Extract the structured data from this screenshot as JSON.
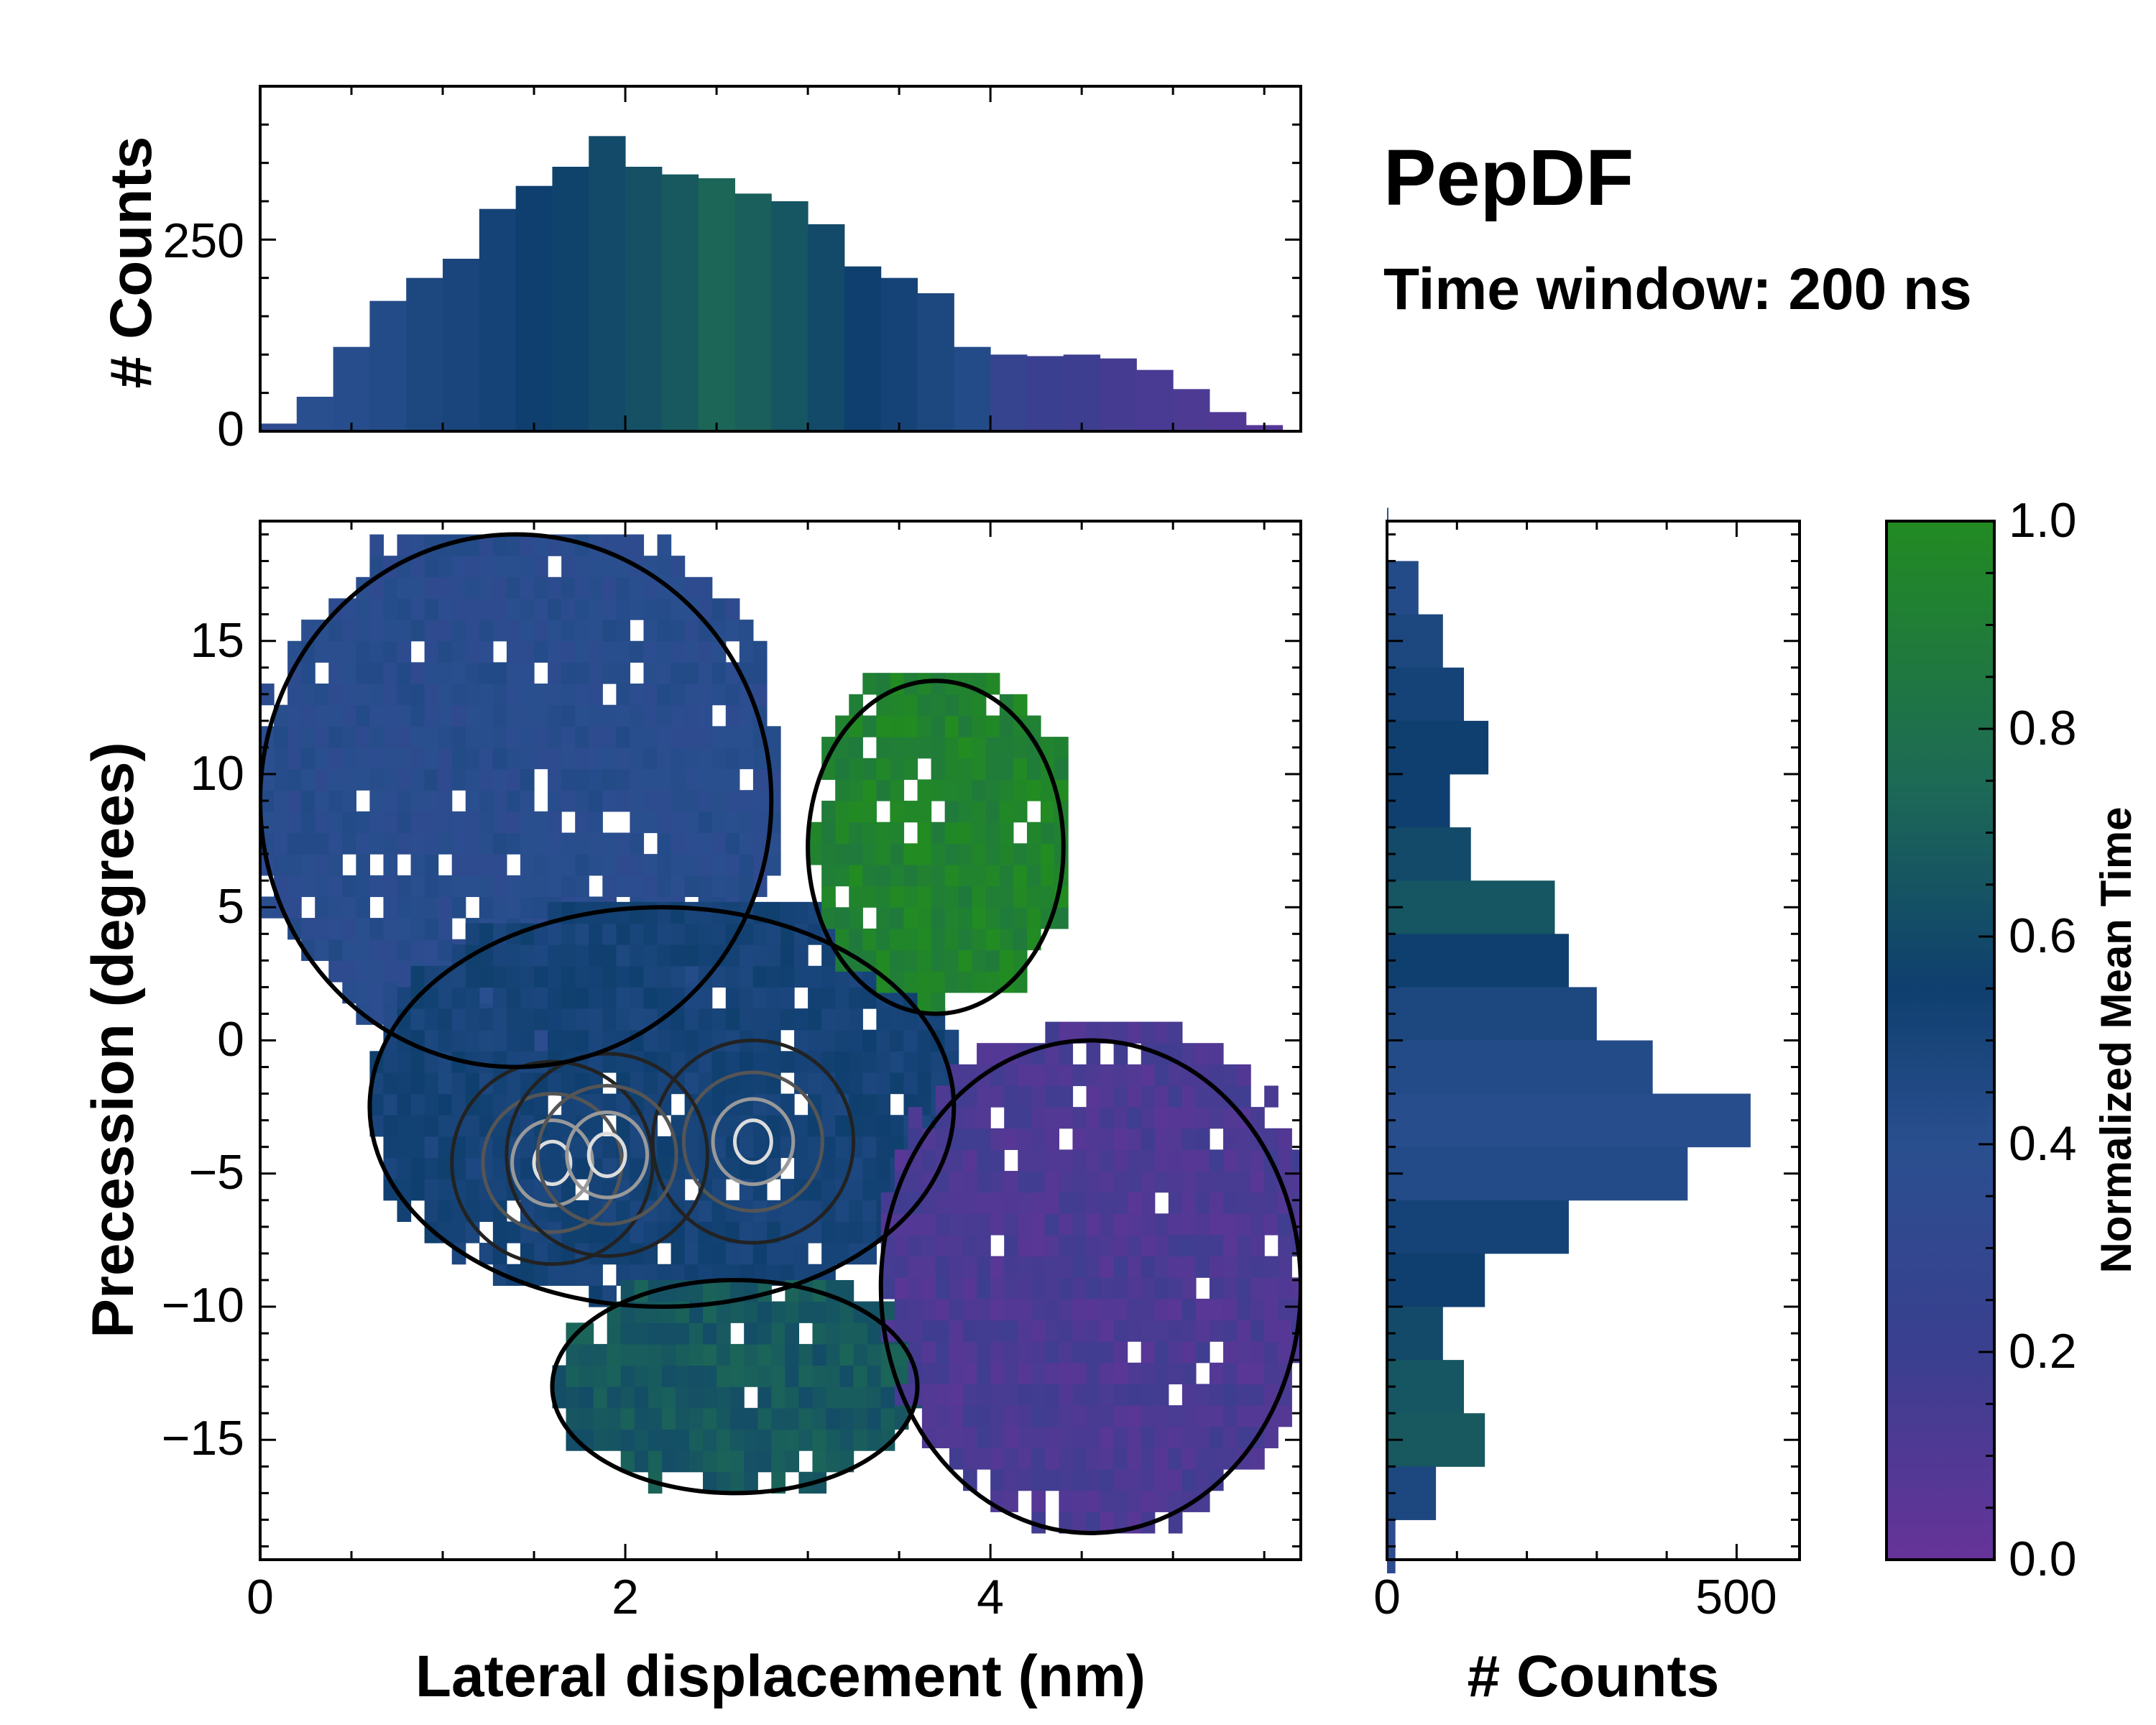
{
  "chart_data": [
    {
      "type": "bar",
      "panel": "top-marginal-histogram",
      "ylabel": "# Counts",
      "ylim": [
        0,
        450
      ],
      "yticks": [
        0,
        250
      ],
      "xlim": [
        0,
        5.7
      ],
      "description_series": "counts of lateral displacement (nm), colored by normalized mean time",
      "x_centers": [
        0.1,
        0.3,
        0.5,
        0.7,
        0.9,
        1.1,
        1.3,
        1.5,
        1.7,
        1.9,
        2.1,
        2.3,
        2.5,
        2.7,
        2.9,
        3.1,
        3.3,
        3.5,
        3.7,
        3.9,
        4.1,
        4.3,
        4.5,
        4.7,
        4.9,
        5.1,
        5.3,
        5.5
      ],
      "values": [
        10,
        45,
        110,
        170,
        200,
        225,
        290,
        320,
        345,
        385,
        345,
        335,
        330,
        310,
        300,
        270,
        215,
        200,
        180,
        110,
        100,
        98,
        100,
        95,
        80,
        55,
        25,
        8
      ],
      "color_values": [
        0.35,
        0.4,
        0.42,
        0.45,
        0.5,
        0.52,
        0.55,
        0.6,
        0.62,
        0.65,
        0.68,
        0.72,
        0.78,
        0.75,
        0.7,
        0.65,
        0.6,
        0.55,
        0.5,
        0.45,
        0.25,
        0.2,
        0.18,
        0.15,
        0.13,
        0.12,
        0.1,
        0.08
      ]
    },
    {
      "type": "heatmap",
      "panel": "main-2d-histogram",
      "xlabel": "Lateral displacement (nm)",
      "ylabel": "Precession (degrees)",
      "xlim": [
        0,
        5.7
      ],
      "ylim": [
        -19.5,
        19.5
      ],
      "xticks": [
        0,
        2,
        4
      ],
      "yticks": [
        -15,
        -10,
        -5,
        0,
        5,
        10,
        15
      ],
      "regions": [
        {
          "name": "blue-upper-left",
          "x_range": [
            0,
            2.8
          ],
          "y_range": [
            -1,
            19
          ],
          "color_value": 0.4
        },
        {
          "name": "teal-center",
          "x_range": [
            0.6,
            3.8
          ],
          "y_range": [
            -10,
            5
          ],
          "color_value": 0.55
        },
        {
          "name": "green-upper-right",
          "x_range": [
            3.0,
            4.4
          ],
          "y_range": [
            1,
            13.5
          ],
          "color_value": 0.95
        },
        {
          "name": "green-lower",
          "x_range": [
            1.6,
            3.6
          ],
          "y_range": [
            -17,
            -9
          ],
          "color_value": 0.72
        },
        {
          "name": "purple-lower-right",
          "x_range": [
            3.4,
            5.7
          ],
          "y_range": [
            -18.5,
            0
          ],
          "color_value": 0.12
        }
      ],
      "density_peaks": [
        {
          "x": 1.6,
          "y": -4.6
        },
        {
          "x": 2.7,
          "y": -3.8
        },
        {
          "x": 1.9,
          "y": -4.3
        }
      ]
    },
    {
      "type": "bar",
      "panel": "right-marginal-histogram",
      "orientation": "horizontal",
      "xlabel": "# Counts",
      "xlim": [
        0,
        590
      ],
      "xticks": [
        0,
        500
      ],
      "ylim": [
        -19.5,
        19.5
      ],
      "y_centers": [
        19,
        17,
        15,
        13,
        11,
        9,
        7,
        5,
        3,
        1,
        -1,
        -3,
        -5,
        -7,
        -9,
        -11,
        -13,
        -15,
        -17,
        -19
      ],
      "values": [
        2,
        45,
        80,
        110,
        145,
        90,
        120,
        240,
        260,
        300,
        380,
        520,
        430,
        260,
        140,
        80,
        110,
        140,
        70,
        12
      ],
      "color_values": [
        0.4,
        0.45,
        0.5,
        0.55,
        0.6,
        0.6,
        0.65,
        0.7,
        0.6,
        0.5,
        0.45,
        0.42,
        0.45,
        0.55,
        0.6,
        0.65,
        0.7,
        0.72,
        0.5,
        0.35
      ]
    },
    {
      "type": "colorbar",
      "panel": "colorbar",
      "label": "Normalized Mean Time",
      "range": [
        0.0,
        1.0
      ],
      "tick_labels": [
        "0.0",
        "0.2",
        "0.4",
        "0.6",
        "0.8",
        "1.0"
      ],
      "colormap": [
        "#663399",
        "#3a3f8f",
        "#2a4f8f",
        "#0f3f6f",
        "#1d6a55",
        "#228b22"
      ]
    }
  ],
  "header": {
    "title": "PepDF",
    "subtitle": "Time window: 200 ns"
  },
  "labels": {
    "top_ylabel": "# Counts",
    "main_xlabel": "Lateral displacement (nm)",
    "main_ylabel": "Precession (degrees)",
    "right_xlabel": "# Counts",
    "colorbar_label": "Normalized Mean Time"
  },
  "tick_text": {
    "top_y": [
      "0",
      "250"
    ],
    "main_x": [
      "0",
      "2",
      "4"
    ],
    "main_y": [
      "−15",
      "−10",
      "−5",
      "0",
      "5",
      "10",
      "15"
    ],
    "right_x": [
      "0",
      "500"
    ],
    "colorbar": [
      "0.0",
      "0.2",
      "0.4",
      "0.6",
      "0.8",
      "1.0"
    ]
  }
}
